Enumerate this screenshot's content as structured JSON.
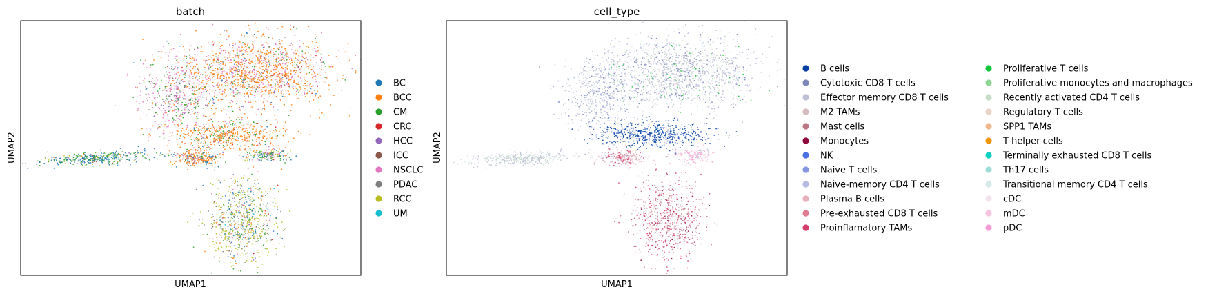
{
  "chart_data": [
    {
      "type": "scatter",
      "title": "batch",
      "xlabel": "UMAP1",
      "ylabel": "UMAP2",
      "legend_placement": "right",
      "categories": [
        {
          "name": "BC",
          "color": "#1f77b4"
        },
        {
          "name": "BCC",
          "color": "#ff7f0e"
        },
        {
          "name": "CM",
          "color": "#2ca02c"
        },
        {
          "name": "CRC",
          "color": "#d62728"
        },
        {
          "name": "HCC",
          "color": "#9467bd"
        },
        {
          "name": "ICC",
          "color": "#8c564b"
        },
        {
          "name": "NSCLC",
          "color": "#e377c2"
        },
        {
          "name": "PDAC",
          "color": "#7f7f7f"
        },
        {
          "name": "RCC",
          "color": "#bcbd22"
        },
        {
          "name": "UM",
          "color": "#17becf"
        }
      ]
    },
    {
      "type": "scatter",
      "title": "cell_type",
      "xlabel": "UMAP1",
      "ylabel": "UMAP2",
      "legend_placement": "right",
      "categories": [
        {
          "name": "B cells",
          "color": "#023fa5"
        },
        {
          "name": "Cytotoxic CD8 T cells",
          "color": "#7d87b9"
        },
        {
          "name": "Effector memory CD8 T cells",
          "color": "#bec1d4"
        },
        {
          "name": "M2 TAMs",
          "color": "#d6bcc0"
        },
        {
          "name": "Mast cells",
          "color": "#bb7784"
        },
        {
          "name": "Monocytes",
          "color": "#8e063b"
        },
        {
          "name": "NK",
          "color": "#4a6fe3"
        },
        {
          "name": "Naive T cells",
          "color": "#8595e1"
        },
        {
          "name": "Naive-memory CD4 T cells",
          "color": "#b5bbe3"
        },
        {
          "name": "Plasma B cells",
          "color": "#e6afb9"
        },
        {
          "name": "Pre-exhausted CD8 T cells",
          "color": "#e07b91"
        },
        {
          "name": "Proinflamatory TAMs",
          "color": "#d33f6a"
        },
        {
          "name": "Proliferative T cells",
          "color": "#11c638"
        },
        {
          "name": "Proliferative monocytes and macrophages",
          "color": "#8dd593"
        },
        {
          "name": "Recently activated CD4 T cells",
          "color": "#c6dec7"
        },
        {
          "name": "Regulatory T cells",
          "color": "#ead3c6"
        },
        {
          "name": "SPP1 TAMs",
          "color": "#f0b98d"
        },
        {
          "name": "T helper cells",
          "color": "#ef9708"
        },
        {
          "name": "Terminally exhausted CD8 T cells",
          "color": "#0fcfc0"
        },
        {
          "name": "Th17 cells",
          "color": "#9cded6"
        },
        {
          "name": "Transitional memory CD4 T cells",
          "color": "#d5eae7"
        },
        {
          "name": "cDC",
          "color": "#f3e1eb"
        },
        {
          "name": "mDC",
          "color": "#f6c4e1"
        },
        {
          "name": "pDC",
          "color": "#f79cd4"
        }
      ]
    }
  ]
}
